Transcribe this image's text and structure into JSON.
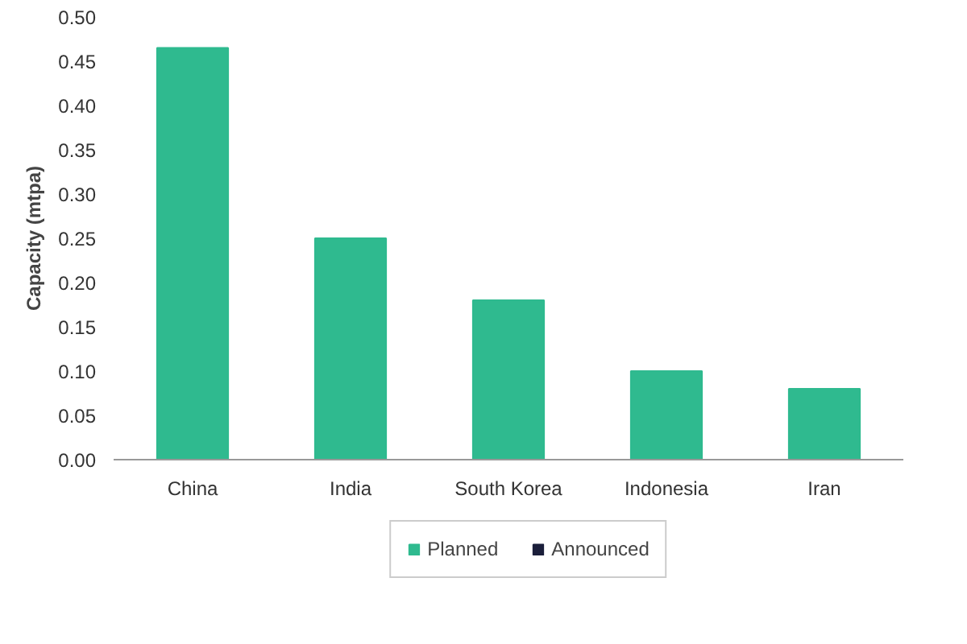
{
  "chart_data": {
    "type": "bar",
    "ylabel": "Capacity (mtpa)",
    "categories": [
      "China",
      "India",
      "South Korea",
      "Indonesia",
      "Iran"
    ],
    "series": [
      {
        "name": "Planned",
        "color": "#2fba8f",
        "values": [
          0.465,
          0.25,
          0.18,
          0.1,
          0.08
        ]
      },
      {
        "name": "Announced",
        "color": "#1b1f3b",
        "values": [
          null,
          null,
          null,
          null,
          null
        ]
      }
    ],
    "ylim": [
      0,
      0.5
    ],
    "yticks": [
      {
        "value": 0,
        "label": "0.00"
      },
      {
        "value": 0.05,
        "label": "0.05"
      },
      {
        "value": 0.1,
        "label": "0.10"
      },
      {
        "value": 0.15,
        "label": "0.15"
      },
      {
        "value": 0.2,
        "label": "0.20"
      },
      {
        "value": 0.25,
        "label": "0.25"
      },
      {
        "value": 0.3,
        "label": "0.30"
      },
      {
        "value": 0.35,
        "label": "0.35"
      },
      {
        "value": 0.4,
        "label": "0.40"
      },
      {
        "value": 0.45,
        "label": "0.45"
      },
      {
        "value": 0.5,
        "label": "0.50"
      }
    ],
    "grid": false,
    "legend": "bottom"
  }
}
